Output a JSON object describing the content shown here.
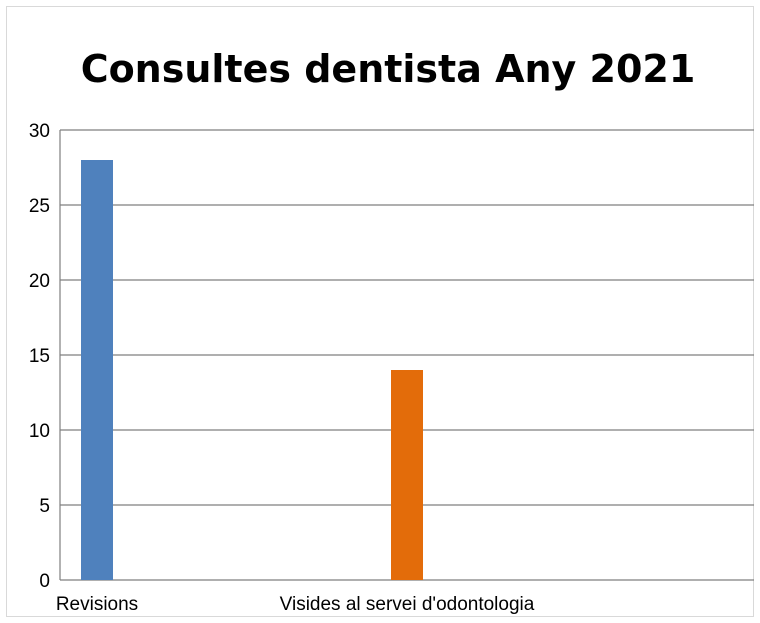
{
  "chart_data": {
    "type": "bar",
    "title": "Consultes dentista Any 2021",
    "xlabel": "",
    "ylabel": "",
    "categories": [
      "Revisions",
      "Visides al servei d'odontologia"
    ],
    "values": [
      28,
      14
    ],
    "bar_colors": [
      "#4f81bd",
      "#e36c0a"
    ],
    "ylim": [
      0,
      30
    ],
    "yticks": [
      "0",
      "5",
      "10",
      "15",
      "20",
      "25",
      "30"
    ],
    "grid": true,
    "legend": "none"
  },
  "colors": {
    "gridline": "#7f7f7f",
    "frame": "#d9d9d9"
  }
}
